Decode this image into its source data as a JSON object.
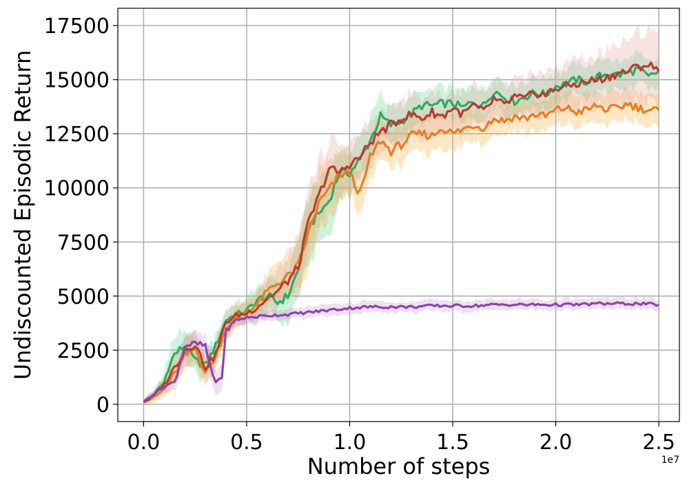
{
  "chart_data": {
    "type": "line",
    "xlabel": "Number of steps",
    "ylabel": "Undiscounted Episodic Return",
    "x_offset_label": "1e7",
    "xlim": [
      -0.125,
      2.6
    ],
    "ylim": [
      -800,
      18300
    ],
    "xticks": [
      0.0,
      0.5,
      1.0,
      1.5,
      2.0,
      2.5
    ],
    "xtick_labels": [
      "0.0",
      "0.5",
      "1.0",
      "1.5",
      "2.0",
      "2.5"
    ],
    "yticks": [
      0,
      2500,
      5000,
      7500,
      10000,
      12500,
      15000,
      17500
    ],
    "ytick_labels": [
      "0",
      "2500",
      "5000",
      "7500",
      "10000",
      "12500",
      "15000",
      "17500"
    ],
    "grid": true,
    "legend": "none",
    "series": [
      {
        "color": "#27ae60",
        "band_color": "#58d68d",
        "x": [
          0.0,
          0.05,
          0.1,
          0.12,
          0.15,
          0.2,
          0.25,
          0.3,
          0.35,
          0.4,
          0.45,
          0.5,
          0.55,
          0.6,
          0.65,
          0.7,
          0.75,
          0.8,
          0.85,
          0.9,
          0.95,
          1.0,
          1.05,
          1.1,
          1.15,
          1.2,
          1.25,
          1.3,
          1.35,
          1.4,
          1.45,
          1.5,
          1.55,
          1.6,
          1.65,
          1.7,
          1.75,
          1.8,
          1.85,
          1.9,
          1.95,
          2.0,
          2.05,
          2.1,
          2.15,
          2.2,
          2.25,
          2.3,
          2.35,
          2.4,
          2.45,
          2.5
        ],
        "y": [
          100,
          450,
          1000,
          1700,
          2300,
          2700,
          2000,
          1800,
          2700,
          3900,
          4150,
          4300,
          4800,
          5000,
          4700,
          5000,
          6200,
          8200,
          8800,
          9400,
          10700,
          10700,
          11300,
          12200,
          13300,
          12900,
          13100,
          13400,
          13800,
          13800,
          13900,
          13900,
          13700,
          14000,
          13800,
          14500,
          14200,
          14000,
          14200,
          14400,
          14300,
          14700,
          14800,
          15000,
          14900,
          15100,
          15300,
          15200,
          15300,
          15500,
          15100,
          15400
        ],
        "band": [
          100,
          200,
          400,
          600,
          800,
          700,
          700,
          600,
          600,
          500,
          500,
          600,
          700,
          800,
          900,
          1100,
          1300,
          1500,
          1500,
          1400,
          1200,
          1100,
          1000,
          1000,
          900,
          900,
          800,
          800,
          700,
          700,
          700,
          700,
          700,
          700,
          700,
          700,
          700,
          700,
          700,
          700,
          700,
          700,
          700,
          700,
          700,
          700,
          700,
          700,
          700,
          700,
          700,
          700
        ]
      },
      {
        "color": "#e67e22",
        "band_color": "#f5b041",
        "x": [
          0.0,
          0.05,
          0.1,
          0.15,
          0.2,
          0.25,
          0.3,
          0.35,
          0.4,
          0.45,
          0.5,
          0.55,
          0.6,
          0.65,
          0.7,
          0.75,
          0.8,
          0.85,
          0.9,
          0.95,
          1.0,
          1.05,
          1.1,
          1.15,
          1.2,
          1.25,
          1.3,
          1.35,
          1.4,
          1.45,
          1.5,
          1.55,
          1.6,
          1.65,
          1.7,
          1.75,
          1.8,
          1.85,
          1.9,
          1.95,
          2.0,
          2.05,
          2.1,
          2.15,
          2.2,
          2.25,
          2.3,
          2.35,
          2.4,
          2.45,
          2.5
        ],
        "y": [
          100,
          300,
          700,
          1400,
          2200,
          2600,
          1500,
          2200,
          3500,
          4000,
          4300,
          4600,
          5200,
          5600,
          5900,
          6400,
          7900,
          9300,
          9900,
          10600,
          10700,
          9700,
          11400,
          12200,
          11700,
          12000,
          12400,
          12500,
          12400,
          12800,
          12500,
          12700,
          12900,
          12800,
          13200,
          13100,
          13300,
          13200,
          13400,
          13300,
          13600,
          13700,
          13500,
          13600,
          13800,
          13600,
          13700,
          13900,
          13700,
          13600,
          13600
        ],
        "band": [
          100,
          200,
          400,
          600,
          700,
          700,
          600,
          600,
          500,
          500,
          500,
          600,
          700,
          900,
          1100,
          1300,
          1500,
          1500,
          1400,
          1200,
          1100,
          1000,
          1000,
          900,
          900,
          900,
          900,
          800,
          800,
          800,
          800,
          800,
          700,
          700,
          700,
          700,
          700,
          700,
          700,
          700,
          700,
          700,
          700,
          700,
          700,
          700,
          700,
          700,
          700,
          700,
          700
        ]
      },
      {
        "color": "#c0392b",
        "band_color": "#e6a4a0",
        "x": [
          0.0,
          0.05,
          0.1,
          0.15,
          0.2,
          0.25,
          0.3,
          0.35,
          0.4,
          0.45,
          0.5,
          0.55,
          0.6,
          0.65,
          0.7,
          0.75,
          0.8,
          0.85,
          0.9,
          0.95,
          1.0,
          1.05,
          1.1,
          1.15,
          1.2,
          1.25,
          1.3,
          1.35,
          1.4,
          1.45,
          1.5,
          1.55,
          1.6,
          1.65,
          1.7,
          1.75,
          1.8,
          1.85,
          1.9,
          1.95,
          2.0,
          2.05,
          2.1,
          2.15,
          2.2,
          2.25,
          2.3,
          2.35,
          2.4,
          2.45,
          2.5
        ],
        "y": [
          100,
          400,
          900,
          1700,
          2500,
          2800,
          1700,
          2300,
          3800,
          4100,
          4200,
          4500,
          4900,
          5200,
          5700,
          6300,
          8400,
          9600,
          10900,
          10700,
          11100,
          11400,
          12100,
          12600,
          12900,
          13200,
          13400,
          13200,
          13500,
          13300,
          13700,
          13400,
          13800,
          13500,
          14100,
          13800,
          14200,
          14100,
          14400,
          14300,
          14600,
          14700,
          14800,
          14900,
          15000,
          15100,
          15300,
          15400,
          15600,
          15700,
          15400
        ],
        "band": [
          100,
          200,
          400,
          600,
          700,
          700,
          600,
          600,
          500,
          500,
          500,
          600,
          800,
          900,
          1100,
          1300,
          1500,
          1500,
          1400,
          1200,
          1100,
          1000,
          1000,
          900,
          900,
          900,
          900,
          900,
          900,
          900,
          900,
          900,
          900,
          900,
          900,
          900,
          900,
          900,
          1000,
          1000,
          1000,
          1100,
          1100,
          1200,
          1200,
          1300,
          1400,
          1500,
          1600,
          1700,
          1700
        ]
      },
      {
        "color": "#8e44ad",
        "band_color": "#c39bd3",
        "x": [
          0.0,
          0.05,
          0.1,
          0.15,
          0.2,
          0.25,
          0.3,
          0.32,
          0.35,
          0.38,
          0.4,
          0.45,
          0.5,
          0.55,
          0.6,
          0.7,
          0.8,
          0.9,
          1.0,
          1.1,
          1.2,
          1.3,
          1.4,
          1.5,
          1.6,
          1.7,
          1.8,
          1.9,
          2.0,
          2.1,
          2.2,
          2.3,
          2.4,
          2.5
        ],
        "y": [
          100,
          500,
          850,
          1000,
          2700,
          2800,
          2700,
          1800,
          1000,
          1300,
          3400,
          3900,
          4000,
          4050,
          4100,
          4150,
          4250,
          4350,
          4450,
          4500,
          4500,
          4500,
          4550,
          4550,
          4550,
          4600,
          4600,
          4600,
          4600,
          4600,
          4650,
          4650,
          4650,
          4600
        ],
        "band": [
          100,
          200,
          300,
          400,
          500,
          500,
          500,
          600,
          600,
          600,
          400,
          300,
          300,
          300,
          250,
          250,
          250,
          250,
          250,
          250,
          250,
          250,
          250,
          250,
          250,
          250,
          250,
          250,
          250,
          250,
          250,
          250,
          250,
          250
        ]
      }
    ]
  }
}
